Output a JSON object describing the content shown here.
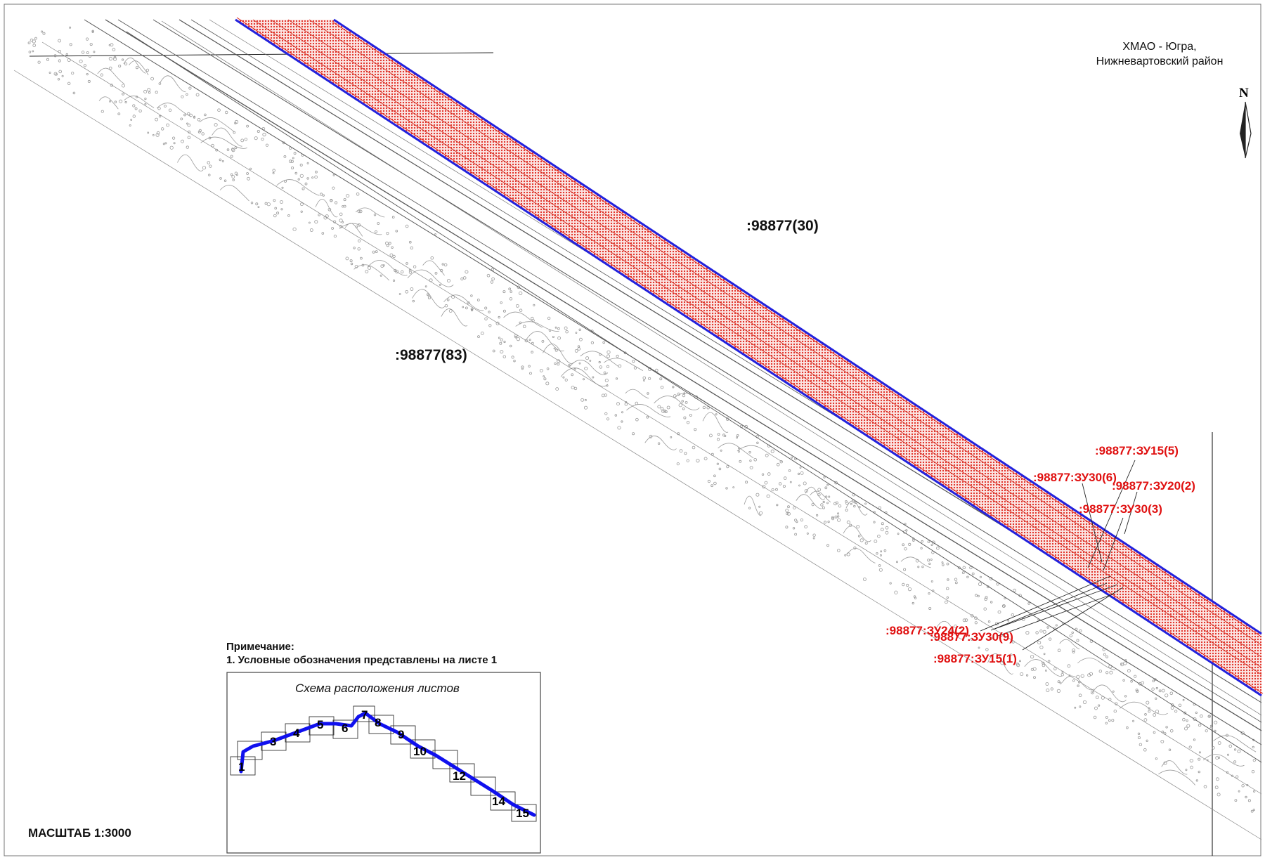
{
  "header": {
    "region_line1": "ХМАО - Югра,",
    "region_line2": "Нижневартовский район",
    "north": "N"
  },
  "parcels": [
    ":98877(30)",
    ":98877(83)"
  ],
  "red_labels": [
    ":98877:ЗУ15(5)",
    ":98877:ЗУ30(6)",
    ":98877:ЗУ20(2)",
    ":98877:ЗУ30(3)",
    ":98877:ЗУ24(2)",
    ":98877:ЗУ30(9)",
    ":98877:ЗУ15(1)"
  ],
  "notes": {
    "heading": "Примечание:",
    "line1": "1. Условные обозначения представлены на листе 1"
  },
  "scale": "МАСШТАБ 1:3000",
  "inset": {
    "title": "Схема расположения листов",
    "sheets": [
      "1",
      "3",
      "4",
      "5",
      "6",
      "7",
      "8",
      "9",
      "10",
      "12",
      "14",
      "15"
    ]
  },
  "colors": {
    "zone_fill": "#e8332a",
    "boundary": "#2222dd",
    "label_red": "#e01010",
    "route": "#1010ee"
  }
}
